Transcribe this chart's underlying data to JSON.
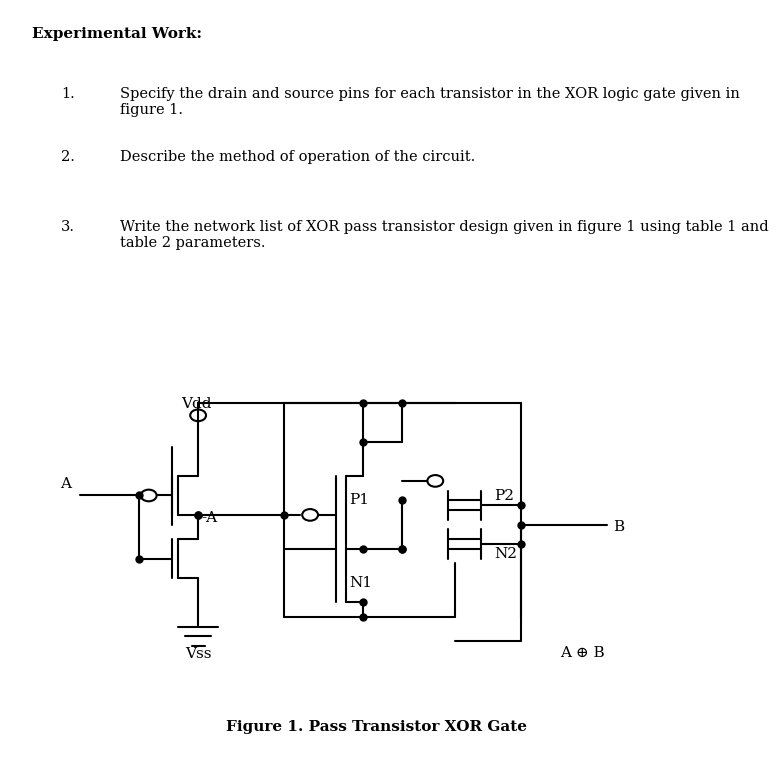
{
  "bg_color": "#ffffff",
  "text_color": "#000000",
  "title": "Experimental Work:",
  "items": [
    {
      "num": "1.",
      "text": "Specify the drain and source pins for each transistor in the XOR logic gate given in\nfigure 1."
    },
    {
      "num": "2.",
      "text": "Describe the method of operation of the circuit."
    },
    {
      "num": "3.",
      "text": "Write the network list of XOR pass transistor design given in figure 1 using table 1 and\ntable 2 parameters."
    }
  ],
  "figure_caption": "Figure 1. Pass Transistor XOR Gate",
  "circuit_labels": {
    "Vdd": "Vdd",
    "Vss": "Vss",
    "A": "A",
    "minusA": "-A",
    "P1": "P1",
    "P2": "P2",
    "N1": "N1",
    "N2": "N2",
    "B": "B",
    "out": "A ⊕ B"
  },
  "line_color": "#000000",
  "line_width": 1.5,
  "dot_size": 5,
  "font_family": "DejaVu Serif"
}
